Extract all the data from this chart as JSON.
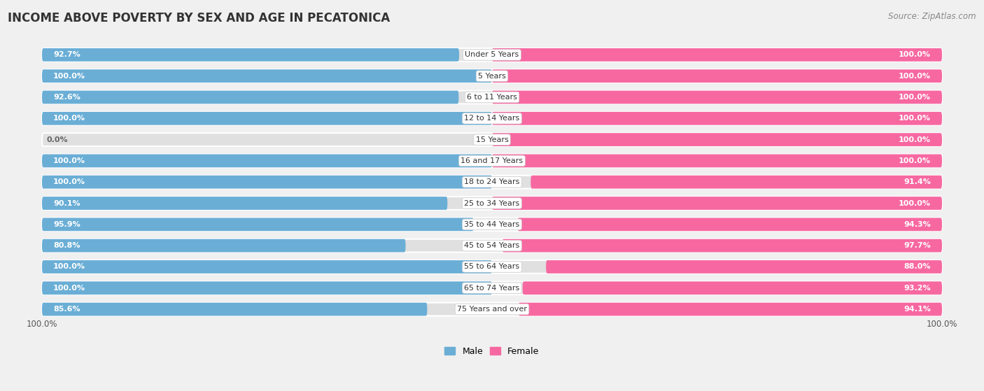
{
  "title": "INCOME ABOVE POVERTY BY SEX AND AGE IN PECATONICA",
  "source": "Source: ZipAtlas.com",
  "categories": [
    "Under 5 Years",
    "5 Years",
    "6 to 11 Years",
    "12 to 14 Years",
    "15 Years",
    "16 and 17 Years",
    "18 to 24 Years",
    "25 to 34 Years",
    "35 to 44 Years",
    "45 to 54 Years",
    "55 to 64 Years",
    "65 to 74 Years",
    "75 Years and over"
  ],
  "male_values": [
    92.7,
    100.0,
    92.6,
    100.0,
    0.0,
    100.0,
    100.0,
    90.1,
    95.9,
    80.8,
    100.0,
    100.0,
    85.6
  ],
  "female_values": [
    100.0,
    100.0,
    100.0,
    100.0,
    100.0,
    100.0,
    91.4,
    100.0,
    94.3,
    97.7,
    88.0,
    93.2,
    94.1
  ],
  "male_color": "#6aaed6",
  "female_color": "#f768a1",
  "male_color_light": "#b8d9ee",
  "female_color_light": "#fbb4d0",
  "male_label": "Male",
  "female_label": "Female",
  "background_color": "#f0f0f0",
  "bar_bg_color": "#e0e0e0",
  "title_fontsize": 12,
  "label_fontsize": 8.5,
  "value_fontsize": 8,
  "source_fontsize": 8.5
}
